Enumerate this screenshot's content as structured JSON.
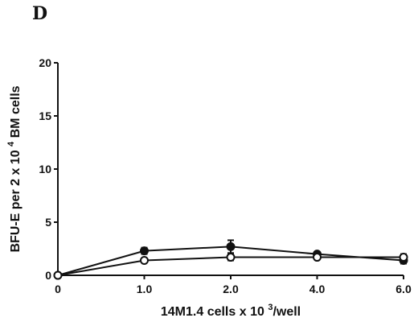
{
  "panel_label": "D",
  "chart_data": {
    "type": "line",
    "title": "",
    "xlabel": "14M1.4 cells x 10 3/well",
    "ylabel": "BFU-E per 2 x 10 4 BM cells",
    "categories": [
      "0",
      "1.0",
      "2.0",
      "4.0",
      "6.0"
    ],
    "ylim": [
      0,
      20
    ],
    "yticks": [
      "0",
      "5",
      "10",
      "15",
      "20"
    ],
    "grid": false,
    "legend": "none",
    "series": [
      {
        "marker": "filled-circle",
        "values": [
          0,
          2.3,
          2.7,
          2.0,
          1.4
        ],
        "errors": [
          0,
          0.3,
          0.6,
          0.2,
          0.3
        ]
      },
      {
        "marker": "open-circle",
        "values": [
          0,
          1.4,
          1.7,
          1.7,
          1.7
        ],
        "errors": [
          0,
          0.2,
          0.3,
          0.2,
          0.3
        ]
      }
    ]
  }
}
